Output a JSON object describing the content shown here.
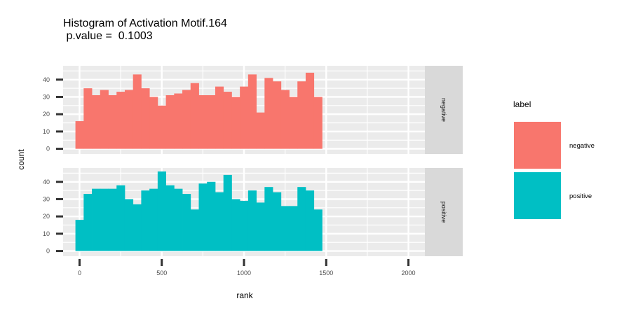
{
  "chart_data": {
    "type": "bar",
    "title": "Histogram of Activation Motif.164",
    "subtitle": " p.value =  0.1003",
    "xlabel": "rank",
    "ylabel": "count",
    "xlim": [
      -100,
      2100
    ],
    "ylim": [
      -3,
      48
    ],
    "x_ticks": [
      0,
      500,
      1000,
      1500,
      2000
    ],
    "y_ticks": [
      0,
      10,
      20,
      30,
      40
    ],
    "bin_start": -25,
    "bin_width": 50,
    "grid": true,
    "panel_background": "#ebebeb",
    "legend": {
      "title": "label",
      "placement": "right",
      "entries": [
        "negative",
        "positive"
      ]
    },
    "series": [
      {
        "name": "negative",
        "color": "#F8766D",
        "values": [
          16,
          35,
          31,
          34,
          31,
          33,
          34,
          43,
          35,
          30,
          25,
          31,
          32,
          34,
          38,
          31,
          31,
          36,
          33,
          30,
          36,
          43,
          21,
          41,
          39,
          34,
          30,
          39,
          44,
          30
        ]
      },
      {
        "name": "positive",
        "color": "#00BFC4",
        "values": [
          18,
          33,
          36,
          36,
          36,
          38,
          30,
          27,
          35,
          36,
          46,
          38,
          36,
          33,
          24,
          39,
          40,
          34,
          44,
          30,
          29,
          35,
          28,
          37,
          34,
          26,
          26,
          37,
          35,
          24
        ]
      }
    ]
  }
}
